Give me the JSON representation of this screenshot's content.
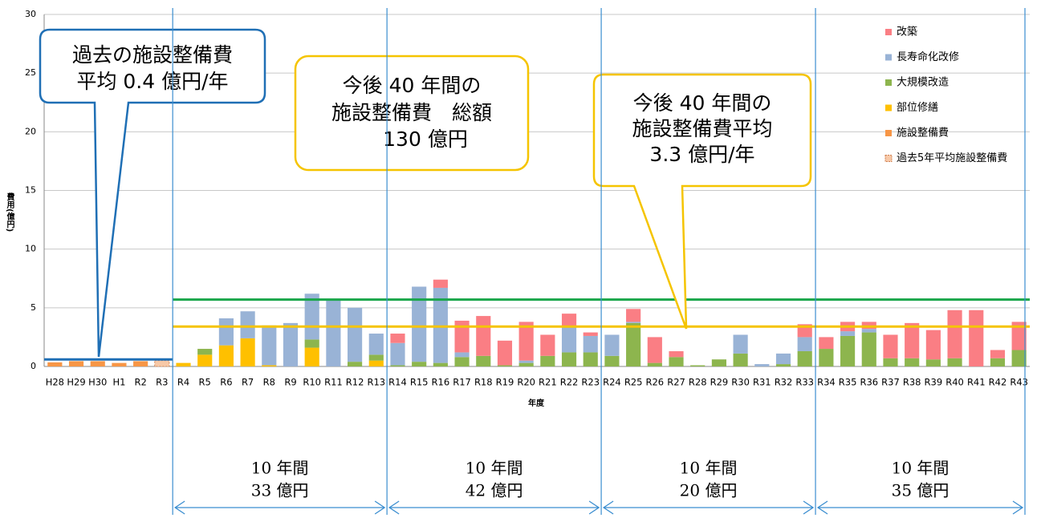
{
  "chart_data": {
    "type": "stacked_bar",
    "ylabel": "費用(億円)",
    "xlabel": "年度",
    "ylim": [
      0,
      30
    ],
    "yticks": [
      0,
      5,
      10,
      15,
      20,
      25,
      30
    ],
    "grid": true,
    "legend": "top-right",
    "categories": [
      "H28",
      "H29",
      "H30",
      "H1",
      "R2",
      "R3",
      "R4",
      "R5",
      "R6",
      "R7",
      "R8",
      "R9",
      "R10",
      "R11",
      "R12",
      "R13",
      "R14",
      "R15",
      "R16",
      "R17",
      "R18",
      "R19",
      "R20",
      "R21",
      "R22",
      "R23",
      "R24",
      "R25",
      "R26",
      "R27",
      "R28",
      "R29",
      "R30",
      "R31",
      "R32",
      "R33",
      "R34",
      "R35",
      "R36",
      "R37",
      "R38",
      "R39",
      "R40",
      "R41",
      "R42",
      "R43"
    ],
    "series": [
      {
        "name": "改築",
        "color": "#fa7e84",
        "values": [
          null,
          null,
          null,
          null,
          null,
          null,
          null,
          null,
          null,
          null,
          null,
          null,
          null,
          null,
          null,
          null,
          0.8,
          null,
          0.7,
          2.7,
          3.4,
          2.1,
          3.3,
          1.8,
          1.1,
          0.3,
          null,
          1.1,
          2.2,
          0.5,
          null,
          null,
          null,
          null,
          null,
          1.1,
          1.0,
          0.8,
          0.6,
          2.0,
          3.0,
          2.5,
          4.1,
          4.8,
          0.7,
          2.4
        ]
      },
      {
        "name": "長寿命化改修",
        "color": "#99b3d6",
        "values": [
          null,
          null,
          null,
          null,
          null,
          null,
          null,
          null,
          2.3,
          2.3,
          3.4,
          3.7,
          3.9,
          5.7,
          4.6,
          1.8,
          1.9,
          6.4,
          6.4,
          0.4,
          null,
          null,
          0.2,
          null,
          2.2,
          1.4,
          1.8,
          0.1,
          null,
          null,
          null,
          null,
          1.6,
          0.2,
          0.9,
          1.2,
          null,
          0.4,
          0.3,
          null,
          null,
          null,
          null,
          null,
          null,
          null
        ]
      },
      {
        "name": "大規模改造",
        "color": "#8db54e",
        "values": [
          null,
          null,
          null,
          null,
          null,
          null,
          null,
          0.5,
          null,
          null,
          null,
          null,
          0.7,
          null,
          0.4,
          0.5,
          0.1,
          0.4,
          0.3,
          0.8,
          0.9,
          0.1,
          0.3,
          0.9,
          1.2,
          1.2,
          0.9,
          3.7,
          0.3,
          0.8,
          0.1,
          0.6,
          1.1,
          null,
          0.2,
          1.3,
          1.5,
          2.6,
          2.9,
          0.7,
          0.7,
          0.6,
          0.7,
          null,
          0.7,
          1.4
        ]
      },
      {
        "name": "部位修繕",
        "color": "#ffc000",
        "values": [
          null,
          null,
          null,
          null,
          null,
          null,
          0.3,
          1.0,
          1.8,
          2.4,
          0.1,
          null,
          1.6,
          null,
          null,
          0.5,
          null,
          null,
          null,
          null,
          null,
          null,
          null,
          null,
          null,
          null,
          null,
          null,
          null,
          null,
          null,
          null,
          null,
          null,
          null,
          null,
          null,
          null,
          null,
          null,
          null,
          null,
          null,
          null,
          null,
          null
        ]
      },
      {
        "name": "施設整備費",
        "color": "#f79646",
        "values": [
          0.35,
          0.45,
          0.45,
          0.3,
          0.45,
          null,
          null,
          null,
          null,
          null,
          null,
          null,
          null,
          null,
          null,
          null,
          null,
          null,
          null,
          null,
          null,
          null,
          null,
          null,
          null,
          null,
          null,
          null,
          null,
          null,
          null,
          null,
          null,
          null,
          null,
          null,
          null,
          null,
          null,
          null,
          null,
          null,
          null,
          null,
          null,
          null
        ]
      },
      {
        "name": "過去5年平均施設整備費",
        "color": "#f7c9a8",
        "dashed": true,
        "values": [
          null,
          null,
          null,
          null,
          null,
          0.5,
          null,
          null,
          null,
          null,
          null,
          null,
          null,
          null,
          null,
          null,
          null,
          null,
          null,
          null,
          null,
          null,
          null,
          null,
          null,
          null,
          null,
          null,
          null,
          null,
          null,
          null,
          null,
          null,
          null,
          null,
          null,
          null,
          null,
          null,
          null,
          null,
          null,
          null,
          null,
          null
        ]
      }
    ],
    "lines": [
      {
        "color": "#1f6fb5",
        "values": [
          0.6,
          0.6,
          0.6,
          0.6,
          0.6,
          0.6,
          null,
          null,
          null,
          null,
          null,
          null,
          null,
          null,
          null,
          null,
          null,
          null,
          null,
          null,
          null,
          null,
          null,
          null,
          null,
          null,
          null,
          null,
          null,
          null,
          null,
          null,
          null,
          null,
          null,
          null,
          null,
          null,
          null,
          null,
          null,
          null,
          null,
          null,
          null,
          null
        ]
      },
      {
        "color": "#1aa64a",
        "values": [
          null,
          null,
          null,
          null,
          null,
          null,
          5.7,
          5.7,
          5.7,
          5.7,
          5.7,
          5.7,
          5.7,
          5.7,
          5.7,
          5.7,
          5.7,
          5.7,
          5.7,
          5.7,
          5.7,
          5.7,
          5.7,
          5.7,
          5.7,
          5.7,
          5.7,
          5.7,
          5.7,
          5.7,
          5.7,
          5.7,
          5.7,
          5.7,
          5.7,
          5.7,
          5.7,
          5.7,
          5.7,
          5.7,
          5.7,
          5.7,
          5.7,
          5.7,
          5.7,
          5.7
        ]
      },
      {
        "color": "#f5c400",
        "values": [
          null,
          null,
          null,
          null,
          null,
          null,
          3.4,
          3.4,
          3.4,
          3.4,
          3.4,
          3.4,
          3.4,
          3.4,
          3.4,
          3.4,
          3.4,
          3.4,
          3.4,
          3.4,
          3.4,
          3.4,
          3.4,
          3.4,
          3.4,
          3.4,
          3.4,
          3.4,
          3.4,
          3.4,
          3.4,
          3.4,
          3.4,
          3.4,
          3.4,
          3.4,
          3.4,
          3.4,
          3.4,
          3.4,
          3.4,
          3.4,
          3.4,
          3.4,
          3.4,
          3.4
        ]
      }
    ],
    "callouts": [
      {
        "lines": [
          "過去の施設整備費",
          "平均 0.4 億円/年"
        ]
      },
      {
        "lines": [
          "今後 40 年間の",
          "施設整備費　総額",
          "130 億円"
        ]
      },
      {
        "lines": [
          "今後 40 年間の",
          "施設整備費平均",
          "3.3 億円/年"
        ]
      }
    ],
    "periods": [
      {
        "label": "10 年間",
        "total": "33 億円"
      },
      {
        "label": "10 年間",
        "total": "42 億円"
      },
      {
        "label": "10 年間",
        "total": "20 億円"
      },
      {
        "label": "10 年間",
        "total": "35 億円"
      }
    ]
  }
}
